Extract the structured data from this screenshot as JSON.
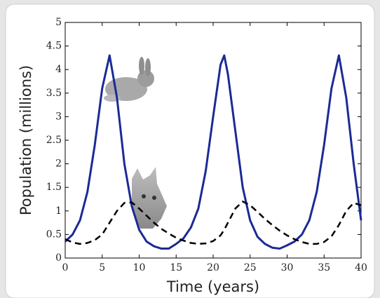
{
  "chart_data": {
    "type": "line",
    "x_label": "Time (years)",
    "y_label": "Population (millions)",
    "x": [
      0,
      1,
      2,
      3,
      4,
      5,
      6,
      7,
      8,
      9,
      10,
      11,
      12,
      13,
      14,
      15,
      16,
      17,
      18,
      19,
      20,
      21,
      21.5,
      22,
      23,
      24,
      25,
      26,
      27,
      28,
      29,
      30,
      31,
      32,
      33,
      34,
      35,
      36,
      37,
      38,
      39,
      40
    ],
    "series": [
      {
        "color": "#1a2a96",
        "dash": "solid",
        "values": [
          0.35,
          0.5,
          0.8,
          1.4,
          2.4,
          3.6,
          4.3,
          3.4,
          2.0,
          1.1,
          0.6,
          0.35,
          0.25,
          0.2,
          0.2,
          0.3,
          0.42,
          0.65,
          1.05,
          1.85,
          3.0,
          4.1,
          4.3,
          3.9,
          2.7,
          1.5,
          0.8,
          0.45,
          0.3,
          0.22,
          0.2,
          0.27,
          0.35,
          0.5,
          0.8,
          1.4,
          2.4,
          3.6,
          4.3,
          3.4,
          2.0,
          0.8
        ]
      },
      {
        "color": "#000000",
        "dash": "dashed",
        "values": [
          0.4,
          0.33,
          0.3,
          0.32,
          0.38,
          0.5,
          0.75,
          1.0,
          1.17,
          1.18,
          1.05,
          0.9,
          0.75,
          0.62,
          0.52,
          0.43,
          0.37,
          0.32,
          0.3,
          0.31,
          0.36,
          0.48,
          0.6,
          0.75,
          1.05,
          1.2,
          1.12,
          0.98,
          0.83,
          0.7,
          0.58,
          0.48,
          0.4,
          0.34,
          0.3,
          0.3,
          0.34,
          0.46,
          0.7,
          1.0,
          1.17,
          1.12
        ]
      }
    ],
    "xlim": [
      0,
      40
    ],
    "xticks": [
      0,
      5,
      10,
      15,
      20,
      25,
      30,
      35,
      40
    ],
    "ylim": [
      0,
      5
    ],
    "yticks": [
      0,
      0.5,
      1,
      1.5,
      2,
      2.5,
      3,
      3.5,
      4,
      4.5,
      5
    ],
    "grid": false
  }
}
